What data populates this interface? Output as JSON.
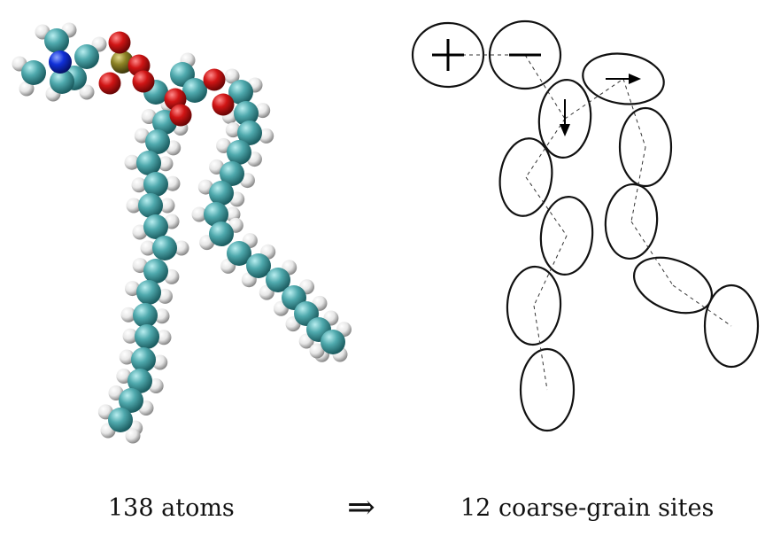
{
  "captions": {
    "atomistic": "138 atoms",
    "arrow": "⇒",
    "coarse_grain": "12 coarse-grain sites"
  },
  "atomistic_model": {
    "colors": {
      "carbon": "#4fa9ad",
      "hydrogen": "#e8e8e8",
      "oxygen": "#d01515",
      "nitrogen": "#1030d8",
      "phosphorus": "#8c8225"
    }
  },
  "coarse_grain_model": {
    "sites": [
      {
        "symbol": "+"
      },
      {
        "symbol": "−"
      },
      {
        "symbol": "dipole-down"
      },
      {
        "symbol": "dipole-right"
      },
      {
        "symbol": ""
      },
      {
        "symbol": ""
      },
      {
        "symbol": ""
      },
      {
        "symbol": ""
      },
      {
        "symbol": ""
      },
      {
        "symbol": ""
      },
      {
        "symbol": ""
      },
      {
        "symbol": ""
      }
    ]
  }
}
